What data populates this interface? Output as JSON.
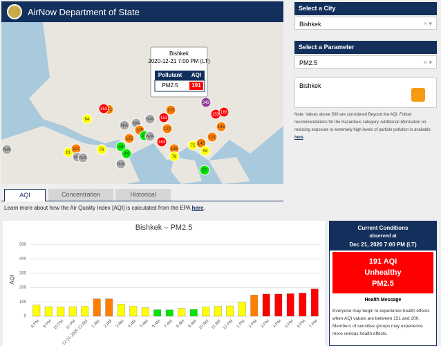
{
  "header": {
    "title": "AirNow Department of State"
  },
  "map": {
    "popup": {
      "city": "Bishkek",
      "time": "2020-12-21 7:00 PM (LT)",
      "columns": [
        "Pollutant",
        "AQI"
      ],
      "pollutant": "PM2.5",
      "aqi": 191
    },
    "markers": [
      "64",
      "81",
      "112",
      "N/A",
      "N/A",
      "78",
      "48",
      "44",
      "N/A",
      "N/A",
      "N/A",
      "105",
      "125",
      "121",
      "153",
      "N/A",
      "34",
      "N/A",
      "103",
      "151",
      "122",
      "163",
      "145",
      "76",
      "75",
      "145",
      "58",
      "131",
      "57",
      "153",
      "183",
      "145",
      "N/A",
      "243"
    ]
  },
  "tabs": [
    "AQI",
    "Concentration",
    "Historical"
  ],
  "learn_more": {
    "text": "Learn more about how the Air Quality Index [AQI] is calculated from the EPA ",
    "link": "here",
    "end": "."
  },
  "sidebar": {
    "city_label": "Select a City",
    "city": "Bishkek",
    "parameter_label": "Select a Parameter",
    "parameter": "PM2.5",
    "feed_title": "Bishkek",
    "note": "Note: Values above 500 are considered Beyond the AQI. Follow recommendations for the Hazardous category. Additional information on reducing exposure to extremely high levels of particle pollution is available ",
    "note_link": "here",
    "note_end": "."
  },
  "chart_data": {
    "type": "bar",
    "title": "Bishkek – PM2.5",
    "y_label": "AQI",
    "categories": [
      "8 PM",
      "9 PM",
      "10 PM",
      "11 PM",
      "12-21-2020 12 AM",
      "1 AM",
      "2 AM",
      "3 AM",
      "4 AM",
      "5 AM",
      "6 AM",
      "7 AM",
      "8 AM",
      "9 AM",
      "10 AM",
      "11 AM",
      "12 PM",
      "1 PM",
      "2 PM",
      "3 PM",
      "4 PM",
      "5 PM",
      "6 PM",
      "7 PM"
    ],
    "values": [
      78,
      67,
      65,
      67,
      70,
      122,
      122,
      85,
      70,
      60,
      46,
      45,
      55,
      48,
      65,
      70,
      72,
      100,
      148,
      155,
      155,
      158,
      162,
      191
    ],
    "colors": [
      "#ffff00",
      "#ffff00",
      "#ffff00",
      "#ffff00",
      "#ffff00",
      "#ff7e00",
      "#ff7e00",
      "#ffff00",
      "#ffff00",
      "#ffff00",
      "#00e400",
      "#00e400",
      "#ffff00",
      "#00e400",
      "#ffff00",
      "#ffff00",
      "#ffff00",
      "#ffff00",
      "#ff7e00",
      "#ff0000",
      "#ff0000",
      "#ff0000",
      "#ff0000",
      "#ff0000"
    ],
    "ylim": [
      0,
      550
    ],
    "yticks": [
      0,
      100,
      200,
      300,
      400,
      500
    ],
    "grid": true
  },
  "conditions": {
    "title": "Current Conditions",
    "observed": "observed at",
    "time": "Dec 21, 2020 7:00 PM (LT)",
    "aqi": "191 AQI",
    "category": "Unhealthy",
    "pollutant": "PM2.5",
    "health_title": "Health Message",
    "health_text": "Everyone may begin to experience health effects when AQI values are between 151 and 200. Members of sensitive groups may experience more serious health effects."
  }
}
